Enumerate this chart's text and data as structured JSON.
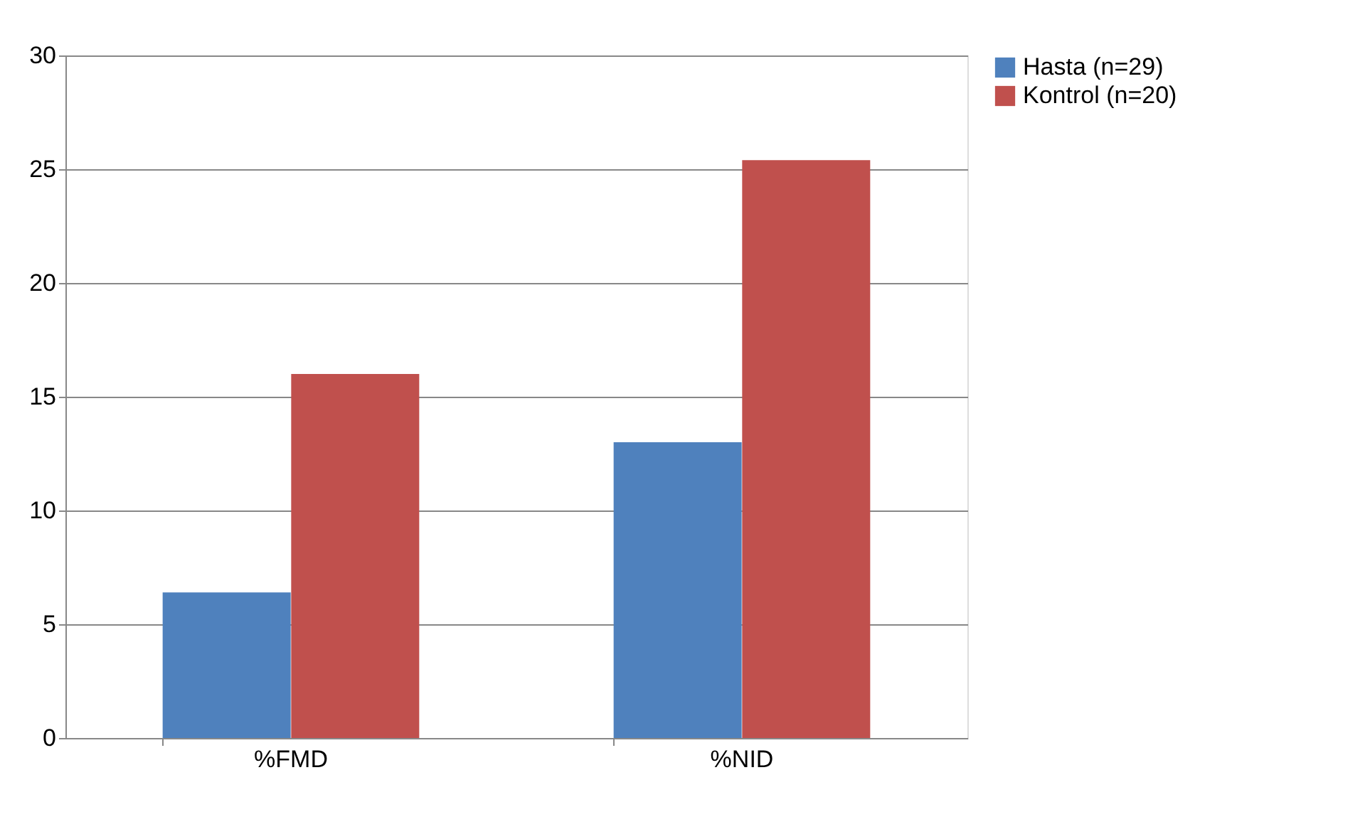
{
  "chart_data": {
    "type": "bar",
    "categories": [
      "%FMD",
      "%NID"
    ],
    "series": [
      {
        "name": "Hasta (n=29)",
        "color": "#4f81bd",
        "values": [
          6.4,
          13
        ]
      },
      {
        "name": "Kontrol   (n=20)",
        "color": "#c0504d",
        "values": [
          16,
          25.4
        ]
      }
    ],
    "ylim": [
      0,
      30
    ],
    "yticks": [
      0,
      5,
      10,
      15,
      20,
      25,
      30
    ],
    "grid": "y",
    "legend": "right"
  }
}
